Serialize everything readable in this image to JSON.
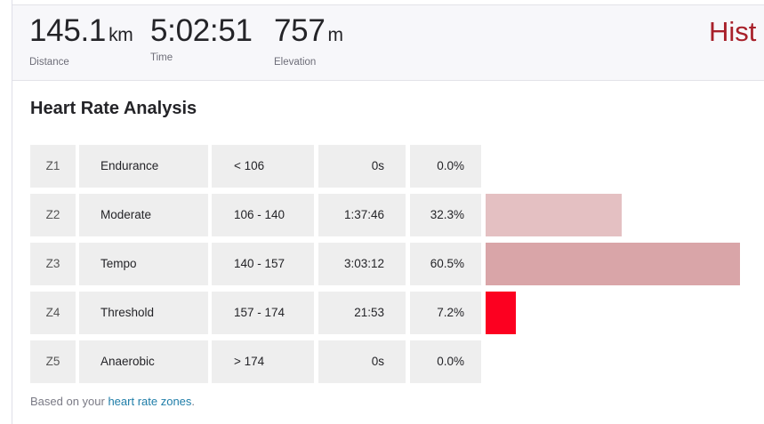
{
  "stats": {
    "distance": {
      "value": "145.1",
      "unit": "km",
      "label": "Distance"
    },
    "time": {
      "value": "5:02:51",
      "label": "Time"
    },
    "elevation": {
      "value": "757",
      "unit": "m",
      "label": "Elevation"
    }
  },
  "header": {
    "hist_link": "Hist"
  },
  "section": {
    "title": "Heart Rate Analysis"
  },
  "zones": [
    {
      "zone": "Z1",
      "name": "Endurance",
      "range": "< 106",
      "time": "0s",
      "percent_label": "0.0%",
      "percent": 0.0,
      "color": "#e4c0c2"
    },
    {
      "zone": "Z2",
      "name": "Moderate",
      "range": "106 - 140",
      "time": "1:37:46",
      "percent_label": "32.3%",
      "percent": 32.3,
      "color": "#e4c0c2"
    },
    {
      "zone": "Z3",
      "name": "Tempo",
      "range": "140 - 157",
      "time": "3:03:12",
      "percent_label": "60.5%",
      "percent": 60.5,
      "color": "#d9a5a8"
    },
    {
      "zone": "Z4",
      "name": "Threshold",
      "range": "157 - 174",
      "time": "21:53",
      "percent_label": "7.2%",
      "percent": 7.2,
      "color": "#fc0020"
    },
    {
      "zone": "Z5",
      "name": "Anaerobic",
      "range": "> 174",
      "time": "0s",
      "percent_label": "0.0%",
      "percent": 0.0,
      "color": "#fc0020"
    }
  ],
  "footnote": {
    "prefix": "Based on your ",
    "link_text": "heart rate zones",
    "suffix": "."
  }
}
